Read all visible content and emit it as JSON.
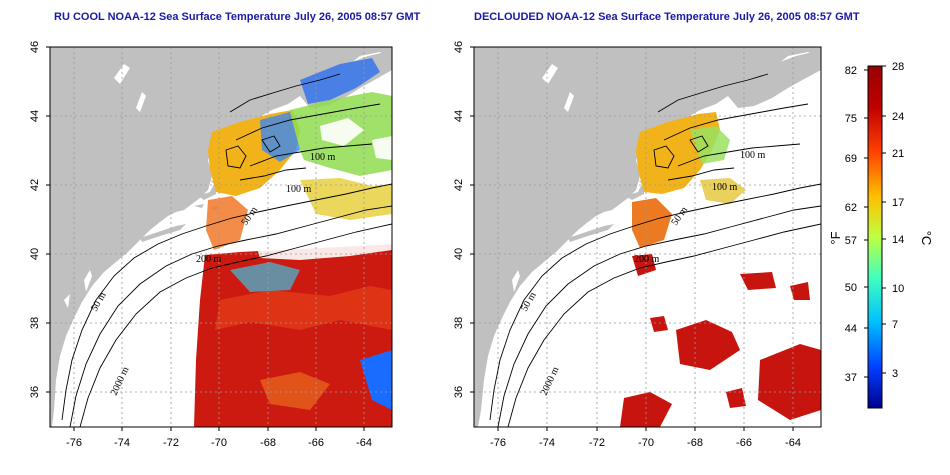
{
  "titles": {
    "left": "RU COOL NOAA-12 Sea Surface Temperature July 26, 2005 08:57 GMT",
    "right": "DECLOUDED NOAA-12 Sea Surface Temperature July 26, 2005 08:57 GMT"
  },
  "axes": {
    "x_ticks": [
      "-76",
      "-74",
      "-72",
      "-70",
      "-68",
      "-66",
      "-64"
    ],
    "y_ticks": [
      "46",
      "44",
      "42",
      "40",
      "38",
      "36"
    ],
    "xlim": [
      -77.2,
      -62.9
    ],
    "ylim": [
      35.0,
      46.0
    ],
    "grid": "dotted"
  },
  "contour_labels": {
    "left": [
      "100 m",
      "100 m",
      "50 m",
      "200 m",
      "50 m",
      "2000 m"
    ],
    "right": [
      "100 m",
      "100 m",
      "50 m",
      "200 m",
      "50 m",
      "2000 m"
    ]
  },
  "colorbar": {
    "f_label": "°F",
    "c_label": "°C",
    "f_ticks": [
      "82",
      "75",
      "69",
      "62",
      "57",
      "50",
      "44",
      "37"
    ],
    "c_ticks": [
      "28",
      "24",
      "21",
      "17",
      "14",
      "10",
      "7",
      "3"
    ],
    "c_range": [
      0,
      28
    ],
    "colors": [
      "#00008f",
      "#0040ff",
      "#00bfff",
      "#40ffbf",
      "#bfff40",
      "#ffbf00",
      "#ff4000",
      "#bf0000",
      "#990000"
    ]
  },
  "colors": {
    "land": "#c0c0c0",
    "cloud": "#ffffff",
    "warm": "#cc1a10",
    "title": "#1a1aa6"
  }
}
